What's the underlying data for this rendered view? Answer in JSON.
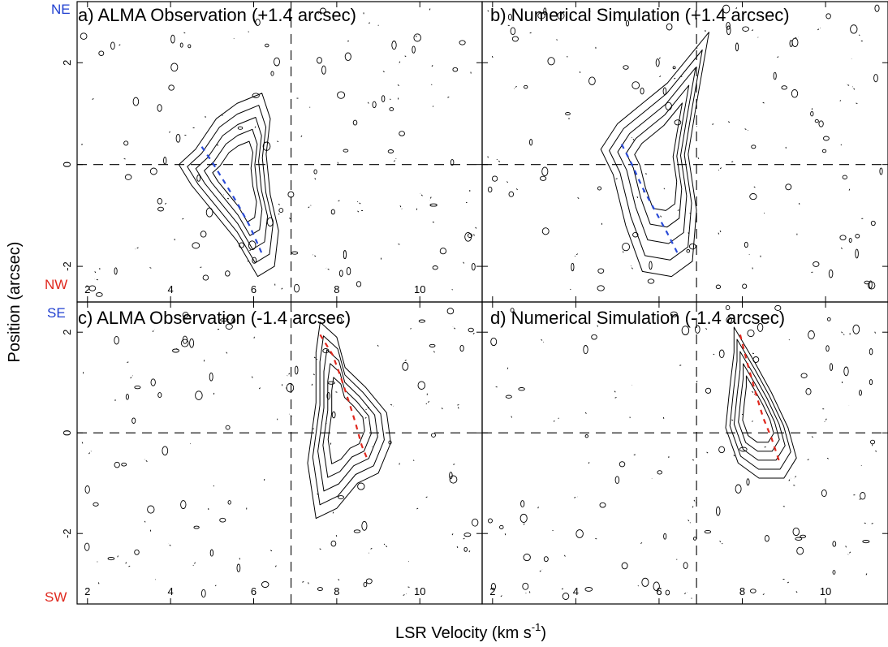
{
  "figure": {
    "xlabel": "LSR Velocity (km s",
    "xlabel_sup": "-1",
    "xlabel_close": ")",
    "ylabel": "Position (arcsec)"
  },
  "colors": {
    "frame": "#000000",
    "ne_label": "#1f3fd0",
    "nw_label": "#e0281e",
    "blue_track": "#2a4bd7",
    "red_track": "#e0281e"
  },
  "direction_labels": {
    "ne": "NE",
    "nw": "NW",
    "se": "SE",
    "sw": "SW"
  },
  "chart_data": [
    {
      "type": "contour",
      "panel": "a",
      "title": "a) ALMA Observation (+1.4 arcsec)",
      "xlim": [
        1.75,
        11.5
      ],
      "ylim": [
        -2.7,
        3.2
      ],
      "x_ticks": [
        2,
        4,
        6,
        8,
        10
      ],
      "x_tick_labels": [
        "2",
        "4",
        "6",
        "8",
        "10"
      ],
      "y_ticks": [
        -2,
        0,
        2
      ],
      "y_tick_labels": [
        "-2",
        "0",
        "2"
      ],
      "reference_lines": {
        "vlsr": 6.9,
        "position": 0
      },
      "emission_outline": [
        [
          4.6,
          0.3
        ],
        [
          5.1,
          0.9
        ],
        [
          5.6,
          1.2
        ],
        [
          6.2,
          1.4
        ],
        [
          6.4,
          0.9
        ],
        [
          6.3,
          0.2
        ],
        [
          6.4,
          -0.6
        ],
        [
          6.6,
          -1.3
        ],
        [
          6.5,
          -2.0
        ],
        [
          6.1,
          -2.2
        ],
        [
          5.6,
          -1.5
        ],
        [
          5.0,
          -0.9
        ],
        [
          4.5,
          -0.4
        ],
        [
          4.2,
          0.0
        ]
      ],
      "peak_track": {
        "color": "blue",
        "points": [
          [
            4.75,
            0.35
          ],
          [
            5.0,
            0.05
          ],
          [
            5.3,
            -0.35
          ],
          [
            5.6,
            -0.75
          ],
          [
            5.9,
            -1.2
          ],
          [
            6.2,
            -1.75
          ]
        ]
      }
    },
    {
      "type": "contour",
      "panel": "b",
      "title": "b) Numerical Simulation (+1.4 arcsec)",
      "xlim": [
        1.75,
        11.5
      ],
      "ylim": [
        -2.7,
        3.2
      ],
      "x_ticks": [
        2,
        4,
        6,
        8,
        10
      ],
      "x_tick_labels": [
        "",
        "",
        "",
        "",
        ""
      ],
      "y_ticks": [
        -2,
        0,
        2
      ],
      "y_tick_labels": [
        "",
        "",
        ""
      ],
      "reference_lines": {
        "vlsr": 6.9,
        "position": 0
      },
      "emission_outline": [
        [
          5.0,
          0.8
        ],
        [
          5.6,
          1.2
        ],
        [
          6.2,
          1.6
        ],
        [
          6.8,
          2.2
        ],
        [
          7.2,
          2.6
        ],
        [
          6.9,
          1.2
        ],
        [
          6.7,
          0.2
        ],
        [
          6.9,
          -0.9
        ],
        [
          6.8,
          -1.9
        ],
        [
          6.3,
          -2.2
        ],
        [
          5.6,
          -2.1
        ],
        [
          5.2,
          -1.2
        ],
        [
          4.9,
          -0.2
        ],
        [
          4.6,
          0.3
        ]
      ],
      "peak_track": {
        "color": "blue",
        "points": [
          [
            5.1,
            0.4
          ],
          [
            5.35,
            0.0
          ],
          [
            5.6,
            -0.45
          ],
          [
            5.9,
            -0.9
          ],
          [
            6.2,
            -1.35
          ],
          [
            6.45,
            -1.75
          ]
        ]
      }
    },
    {
      "type": "contour",
      "panel": "c",
      "title": "c) ALMA Observation (-1.4 arcsec)",
      "xlim": [
        1.75,
        11.5
      ],
      "ylim": [
        -3.4,
        2.6
      ],
      "x_ticks": [
        2,
        4,
        6,
        8,
        10
      ],
      "x_tick_labels": [
        "2",
        "4",
        "6",
        "8",
        "10"
      ],
      "y_ticks": [
        -2,
        0,
        2
      ],
      "y_tick_labels": [
        "-2",
        "0",
        "2"
      ],
      "reference_lines": {
        "vlsr": 6.9,
        "position": 0
      },
      "emission_outline": [
        [
          7.6,
          2.2
        ],
        [
          8.0,
          1.9
        ],
        [
          8.2,
          1.3
        ],
        [
          8.7,
          0.9
        ],
        [
          9.2,
          0.4
        ],
        [
          9.3,
          -0.2
        ],
        [
          9.0,
          -0.8
        ],
        [
          8.5,
          -1.0
        ],
        [
          8.0,
          -1.5
        ],
        [
          7.5,
          -1.7
        ],
        [
          7.3,
          -0.6
        ],
        [
          7.5,
          0.6
        ],
        [
          7.5,
          1.6
        ]
      ],
      "peak_track": {
        "color": "red",
        "points": [
          [
            7.6,
            1.95
          ],
          [
            7.9,
            1.55
          ],
          [
            8.1,
            1.1
          ],
          [
            8.3,
            0.6
          ],
          [
            8.45,
            0.2
          ],
          [
            8.6,
            -0.25
          ],
          [
            8.75,
            -0.55
          ]
        ]
      }
    },
    {
      "type": "contour",
      "panel": "d",
      "title": "d) Numerical Simulation (-1.4 arcsec)",
      "xlim": [
        1.75,
        11.5
      ],
      "ylim": [
        -3.4,
        2.6
      ],
      "x_ticks": [
        2,
        4,
        6,
        8,
        10
      ],
      "x_tick_labels": [
        "2",
        "4",
        "6",
        "8",
        "10"
      ],
      "y_ticks": [
        -2,
        0,
        2
      ],
      "y_tick_labels": [
        "",
        "",
        ""
      ],
      "reference_lines": {
        "vlsr": 6.9,
        "position": 0
      },
      "emission_outline": [
        [
          7.8,
          2.1
        ],
        [
          8.3,
          1.4
        ],
        [
          8.7,
          0.8
        ],
        [
          9.1,
          0.1
        ],
        [
          9.3,
          -0.5
        ],
        [
          9.0,
          -0.9
        ],
        [
          8.4,
          -0.9
        ],
        [
          7.9,
          -0.6
        ],
        [
          7.6,
          0.1
        ],
        [
          7.7,
          0.9
        ],
        [
          7.8,
          1.6
        ]
      ],
      "peak_track": {
        "color": "red",
        "points": [
          [
            7.95,
            1.95
          ],
          [
            8.1,
            1.45
          ],
          [
            8.3,
            0.85
          ],
          [
            8.5,
            0.3
          ],
          [
            8.7,
            -0.1
          ],
          [
            8.9,
            -0.6
          ]
        ]
      }
    }
  ]
}
